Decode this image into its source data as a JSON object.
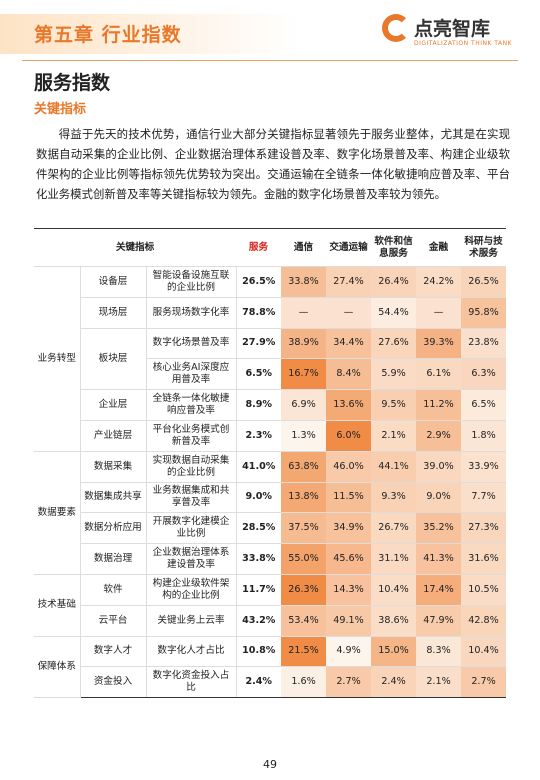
{
  "header": {
    "chapter": "第五章  行业指数",
    "logo_name": "点亮智库",
    "logo_tagline": "DIGITALIZATION THINK TANK"
  },
  "section": {
    "title": "服务指数",
    "subtitle": "关键指标"
  },
  "paragraph": "得益于先天的技术优势，通信行业大部分关键指标显著领先于服务业整体，尤其是在实现数据自动采集的企业比例、企业数据治理体系建设普及率、数字化场景普及率、构建企业级软件架构的企业比例等指标领先优势较为突出。交通运输在全链条一体化敏捷响应普及率、平台化业务模式创新普及率等关键指标较为领先。金融的数字化场景普及率较为领先。",
  "table": {
    "header_label": "关键指标",
    "columns": [
      "服务",
      "通信",
      "交通运输",
      "软件和信息服务",
      "金融",
      "科研与技术服务"
    ],
    "groups": [
      {
        "name": "业务转型",
        "levels": [
          {
            "name": "设备层",
            "indicators": [
              {
                "name": "智能设备设施互联的企业比例",
                "values": [
                  "26.5%",
                  "33.8%",
                  "27.4%",
                  "26.4%",
                  "24.2%",
                  "26.5%"
                ]
              }
            ]
          },
          {
            "name": "现场层",
            "indicators": [
              {
                "name": "服务现场数字化率",
                "values": [
                  "78.8%",
                  "—",
                  "—",
                  "54.4%",
                  "—",
                  "95.8%"
                ]
              }
            ]
          },
          {
            "name": "板块层",
            "indicators": [
              {
                "name": "数字化场景普及率",
                "values": [
                  "27.9%",
                  "38.9%",
                  "34.4%",
                  "27.6%",
                  "39.3%",
                  "23.8%"
                ]
              },
              {
                "name": "核心业务AI深度应用普及率",
                "values": [
                  "6.5%",
                  "16.7%",
                  "8.4%",
                  "5.9%",
                  "6.1%",
                  "6.3%"
                ]
              }
            ]
          },
          {
            "name": "企业层",
            "indicators": [
              {
                "name": "全链条一体化敏捷响应普及率",
                "values": [
                  "8.9%",
                  "6.9%",
                  "13.6%",
                  "9.5%",
                  "11.2%",
                  "6.5%"
                ]
              }
            ]
          },
          {
            "name": "产业链层",
            "indicators": [
              {
                "name": "平台化业务模式创新普及率",
                "values": [
                  "2.3%",
                  "1.3%",
                  "6.0%",
                  "2.1%",
                  "2.9%",
                  "1.8%"
                ]
              }
            ]
          }
        ]
      },
      {
        "name": "数据要素",
        "levels": [
          {
            "name": "数据采集",
            "indicators": [
              {
                "name": "实现数据自动采集的企业比例",
                "values": [
                  "41.0%",
                  "63.8%",
                  "46.0%",
                  "44.1%",
                  "39.0%",
                  "33.9%"
                ]
              }
            ]
          },
          {
            "name": "数据集成共享",
            "indicators": [
              {
                "name": "业务数据集成和共享普及率",
                "values": [
                  "9.0%",
                  "13.8%",
                  "11.5%",
                  "9.3%",
                  "9.0%",
                  "7.7%"
                ]
              }
            ]
          },
          {
            "name": "数据分析应用",
            "indicators": [
              {
                "name": "开展数字化建模企业比例",
                "values": [
                  "28.5%",
                  "37.5%",
                  "34.9%",
                  "26.7%",
                  "35.2%",
                  "27.3%"
                ]
              }
            ]
          },
          {
            "name": "数据治理",
            "indicators": [
              {
                "name": "企业数据治理体系建设普及率",
                "values": [
                  "33.8%",
                  "55.0%",
                  "45.6%",
                  "31.1%",
                  "41.3%",
                  "31.6%"
                ]
              }
            ]
          }
        ]
      },
      {
        "name": "技术基础",
        "levels": [
          {
            "name": "软件",
            "indicators": [
              {
                "name": "构建企业级软件架构的企业比例",
                "values": [
                  "11.7%",
                  "26.3%",
                  "14.3%",
                  "10.4%",
                  "17.4%",
                  "10.5%"
                ]
              }
            ]
          },
          {
            "name": "云平台",
            "indicators": [
              {
                "name": "关键业务上云率",
                "values": [
                  "43.2%",
                  "53.4%",
                  "49.1%",
                  "38.6%",
                  "47.9%",
                  "42.8%"
                ]
              }
            ]
          }
        ]
      },
      {
        "name": "保障体系",
        "levels": [
          {
            "name": "数字人才",
            "indicators": [
              {
                "name": "数字化人才占比",
                "values": [
                  "10.8%",
                  "21.5%",
                  "4.9%",
                  "15.0%",
                  "8.3%",
                  "10.4%"
                ]
              }
            ]
          },
          {
            "name": "资金投入",
            "indicators": [
              {
                "name": "数字化资金投入占比",
                "values": [
                  "2.4%",
                  "1.6%",
                  "2.7%",
                  "2.4%",
                  "2.1%",
                  "2.7%"
                ]
              }
            ]
          }
        ]
      }
    ]
  },
  "footer": {
    "page": "49"
  }
}
